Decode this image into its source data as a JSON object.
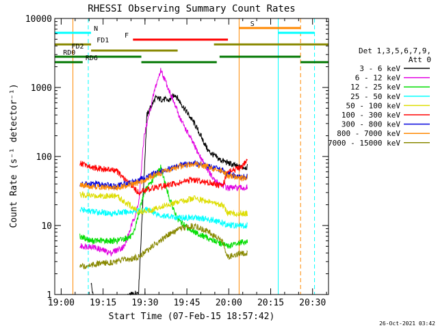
{
  "chart_data": {
    "type": "line",
    "title": "RHESSI Observing Summary Count Rates",
    "xlabel": "Start Time (07-Feb-15 18:57:42)",
    "ylabel": "Count Rate (s⁻¹ detector⁻¹)",
    "footer": "26-Oct-2021 03:42",
    "x_unit": "minutes after 18:57:42",
    "x_ticks": [
      "19:00",
      "19:15",
      "19:30",
      "19:45",
      "20:00",
      "20:15",
      "20:30"
    ],
    "y_ticks": [
      "1",
      "10",
      "100",
      "1000",
      "10000"
    ],
    "ylim": [
      1,
      10000
    ],
    "y_scale": "log",
    "xlim": [
      0,
      98
    ],
    "grid": false,
    "legend": {
      "header_line1": "Det 1,3,5,6,7,9,",
      "header_line2": "Att 0",
      "placement": "right"
    },
    "series": [
      {
        "name": "3 - 6 keV",
        "color": "#000000",
        "points": [
          [
            13,
            1.5
          ],
          [
            14,
            0.8
          ],
          [
            20,
            0.7
          ],
          [
            30,
            1.1
          ],
          [
            33,
            400
          ],
          [
            36,
            700
          ],
          [
            41,
            650
          ],
          [
            43,
            800
          ],
          [
            50,
            300
          ],
          [
            55,
            120
          ],
          [
            59,
            90
          ],
          [
            66,
            70
          ],
          [
            69,
            70
          ]
        ]
      },
      {
        "name": "6 - 12 keV",
        "color": "#e100e1",
        "points": [
          [
            9,
            5
          ],
          [
            13,
            5
          ],
          [
            20,
            4
          ],
          [
            25,
            5
          ],
          [
            30,
            20
          ],
          [
            32,
            200
          ],
          [
            36,
            1000
          ],
          [
            38,
            1800
          ],
          [
            41,
            900
          ],
          [
            45,
            350
          ],
          [
            52,
            100
          ],
          [
            57,
            45
          ],
          [
            62,
            35
          ],
          [
            67,
            35
          ],
          [
            69,
            35
          ]
        ]
      },
      {
        "name": "12 - 25 keV",
        "color": "#00dd00",
        "points": [
          [
            9,
            7
          ],
          [
            13,
            6
          ],
          [
            22,
            6
          ],
          [
            28,
            7
          ],
          [
            32,
            30
          ],
          [
            35,
            45
          ],
          [
            38,
            70
          ],
          [
            41,
            25
          ],
          [
            44,
            12
          ],
          [
            50,
            8
          ],
          [
            57,
            6
          ],
          [
            62,
            5
          ],
          [
            69,
            6
          ]
        ]
      },
      {
        "name": "25 - 50 keV",
        "color": "#00ffff",
        "points": [
          [
            9,
            17
          ],
          [
            13,
            16
          ],
          [
            20,
            15
          ],
          [
            28,
            16
          ],
          [
            33,
            17
          ],
          [
            38,
            14
          ],
          [
            44,
            13
          ],
          [
            50,
            13
          ],
          [
            57,
            12
          ],
          [
            62,
            10
          ],
          [
            67,
            10
          ],
          [
            69,
            10
          ]
        ]
      },
      {
        "name": "50 - 100 keV",
        "color": "#dddd00",
        "points": [
          [
            9,
            28
          ],
          [
            13,
            27
          ],
          [
            22,
            27
          ],
          [
            30,
            16
          ],
          [
            35,
            17
          ],
          [
            40,
            20
          ],
          [
            45,
            22
          ],
          [
            50,
            25
          ],
          [
            55,
            22
          ],
          [
            60,
            20
          ],
          [
            62,
            15
          ],
          [
            69,
            15
          ]
        ]
      },
      {
        "name": "100 - 300 keV",
        "color": "#ff0000",
        "points": [
          [
            9,
            80
          ],
          [
            13,
            70
          ],
          [
            22,
            62
          ],
          [
            30,
            30
          ],
          [
            35,
            35
          ],
          [
            40,
            38
          ],
          [
            45,
            42
          ],
          [
            50,
            46
          ],
          [
            55,
            42
          ],
          [
            60,
            37
          ],
          [
            62,
            60
          ],
          [
            67,
            70
          ],
          [
            69,
            90
          ]
        ]
      },
      {
        "name": "300 - 800 keV",
        "color": "#0000dd",
        "points": [
          [
            9,
            40
          ],
          [
            13,
            40
          ],
          [
            22,
            37
          ],
          [
            30,
            45
          ],
          [
            35,
            55
          ],
          [
            40,
            65
          ],
          [
            45,
            75
          ],
          [
            50,
            80
          ],
          [
            55,
            72
          ],
          [
            60,
            62
          ],
          [
            62,
            55
          ],
          [
            67,
            50
          ],
          [
            69,
            52
          ]
        ]
      },
      {
        "name": "800 - 7000 keV",
        "color": "#ff8800",
        "points": [
          [
            9,
            38
          ],
          [
            13,
            37
          ],
          [
            22,
            35
          ],
          [
            30,
            42
          ],
          [
            35,
            52
          ],
          [
            40,
            62
          ],
          [
            45,
            72
          ],
          [
            50,
            78
          ],
          [
            55,
            70
          ],
          [
            60,
            60
          ],
          [
            62,
            52
          ],
          [
            67,
            48
          ],
          [
            69,
            50
          ]
        ]
      },
      {
        "name": "7000 - 15000 keV",
        "color": "#888800",
        "points": [
          [
            9,
            2.5
          ],
          [
            13,
            2.7
          ],
          [
            22,
            3.0
          ],
          [
            30,
            3.5
          ],
          [
            35,
            5
          ],
          [
            40,
            7
          ],
          [
            45,
            9
          ],
          [
            50,
            10
          ],
          [
            55,
            8
          ],
          [
            60,
            6
          ],
          [
            62,
            3.5
          ],
          [
            67,
            4
          ],
          [
            69,
            4
          ]
        ]
      }
    ],
    "flags": [
      {
        "label": "N",
        "color": "#00ffff",
        "segments": [
          [
            0,
            13
          ],
          [
            80,
            93
          ]
        ]
      },
      {
        "label": "S",
        "color": "#ff8800",
        "segments": [
          [
            66,
            88
          ]
        ]
      },
      {
        "label": "F",
        "color": "#ff0000",
        "segments": [
          [
            28,
            62
          ]
        ]
      },
      {
        "label": "FD1",
        "color": "#888800",
        "segments": [
          [
            0,
            13
          ],
          [
            57,
            98
          ]
        ]
      },
      {
        "label": "FD2",
        "color": "#888800",
        "segments": [
          [
            13,
            44
          ]
        ]
      },
      {
        "label": "RD0",
        "color": "#007700",
        "segments": [
          [
            0,
            31
          ],
          [
            59,
            88
          ]
        ]
      },
      {
        "label": "RD6",
        "color": "#007700",
        "segments": [
          [
            0,
            10
          ],
          [
            31,
            58
          ],
          [
            88,
            98
          ]
        ]
      }
    ],
    "markers": [
      {
        "x": 0,
        "color": "#00ffff",
        "style": "solid"
      },
      {
        "x": 12,
        "color": "#00ffff",
        "style": "dashed"
      },
      {
        "x": 6.5,
        "color": "#ff8800",
        "style": "solid"
      },
      {
        "x": 66,
        "color": "#ff8800",
        "style": "solid"
      },
      {
        "x": 80,
        "color": "#00ffff",
        "style": "solid"
      },
      {
        "x": 88,
        "color": "#ff8800",
        "style": "dashed"
      },
      {
        "x": 93,
        "color": "#00ffff",
        "style": "dashed"
      }
    ]
  }
}
